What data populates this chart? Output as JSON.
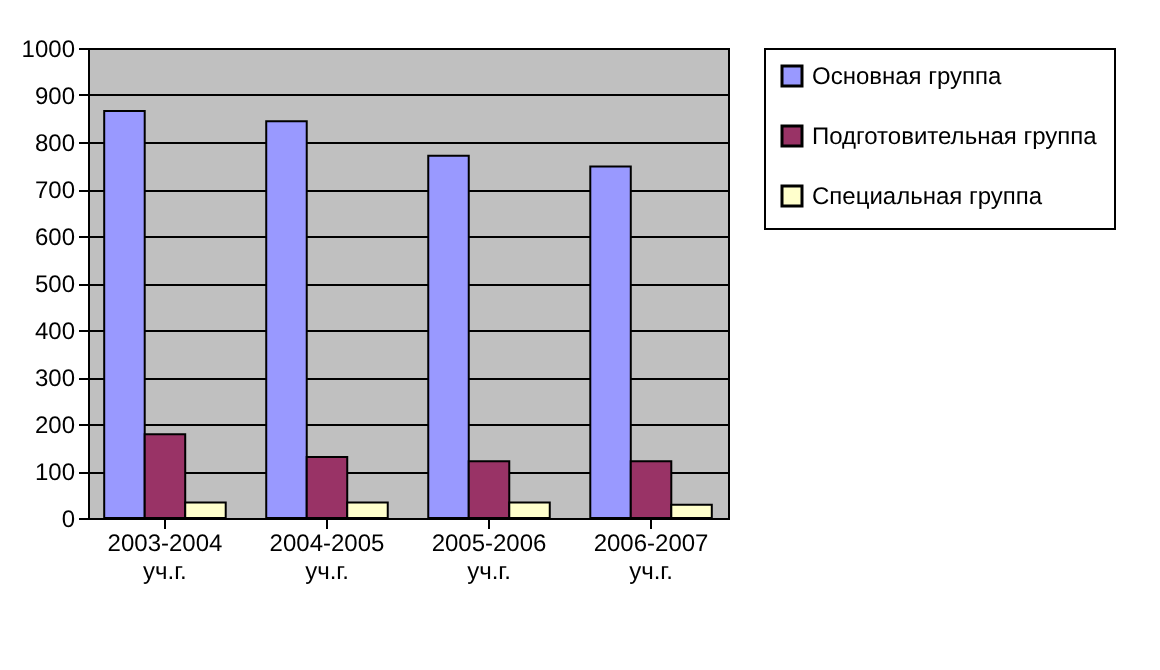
{
  "chart_data": {
    "type": "bar",
    "categories": [
      "2003-2004 уч.г.",
      "2004-2005 уч.г.",
      "2005-2006 уч.г.",
      "2006-2007 уч.г."
    ],
    "series": [
      {
        "name": "Основная группа",
        "color": "#9999ff",
        "values": [
          866,
          844,
          771,
          748
        ]
      },
      {
        "name": "Подготовительная группа",
        "color": "#993366",
        "values": [
          178,
          130,
          121,
          121
        ]
      },
      {
        "name": "Специальная группа",
        "color": "#ffffcc",
        "values": [
          33,
          33,
          33,
          28
        ]
      }
    ],
    "ylim": [
      0,
      1000
    ],
    "yticks": [
      0,
      100,
      200,
      300,
      400,
      500,
      600,
      700,
      800,
      900,
      1000
    ],
    "grid": "y",
    "legend": "right"
  }
}
